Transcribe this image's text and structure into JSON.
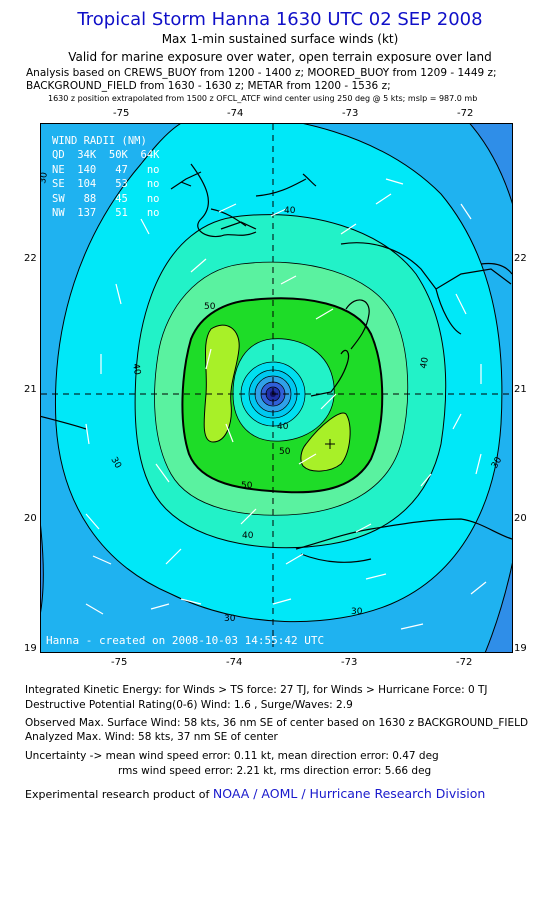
{
  "header": {
    "title": "Tropical Storm Hanna 1630 UTC 02 SEP 2008",
    "subtitle1": "Max 1-min sustained surface winds (kt)",
    "subtitle2": "Valid for marine exposure over water, open terrain exposure over land",
    "analysis1": "Analysis based on  CREWS_BUOY from 1200 - 1400 z;  MOORED_BUOY from 1209 - 1449 z;",
    "analysis2": "BACKGROUND_FIELD from 1630 - 1630 z;  METAR from 1200 - 1536 z;",
    "analysis3": "1630 z position extrapolated from 1500 z OFCL_ATCF wind center using 250 deg @ 5 kts; mslp = 987.0 mb"
  },
  "axes": {
    "lon_ticks": [
      "-75",
      "-74",
      "-73",
      "-72"
    ],
    "lat_ticks": [
      "22",
      "21",
      "20",
      "19"
    ]
  },
  "wind_radii": {
    "title": "WIND RADII (NM)",
    "header": "QD  34K  50K  64K",
    "rows": [
      "NE  140   47   no",
      "SE  104   53   no",
      "SW   88   45   no",
      "NW  137   51   no"
    ]
  },
  "contour_labels": [
    "30",
    "30",
    "30",
    "30",
    "30",
    "40",
    "40",
    "40",
    "40",
    "40",
    "50",
    "50",
    "50"
  ],
  "credit": "Hanna - created on 2008-10-03 14:55:42 UTC",
  "footer": {
    "ike": "Integrated Kinetic Energy:  for Winds > TS force: 27 TJ,  for Winds > Hurricane Force: 0 TJ",
    "dpr": "Destructive Potential Rating(0-6)   Wind: 1.6 , Surge/Waves: 2.9",
    "obs_max": "Observed Max. Surface Wind: 58 kts, 36 nm SE of center based on 1630 z BACKGROUND_FIELD",
    "ana_max": "Analyzed Max. Wind: 58 kts, 37 nm SE of center",
    "unc1": "Uncertainty -> mean wind speed error: 0.11 kt,   mean direction error: 0.47 deg",
    "unc2": "rms wind speed error: 2.21 kt,   rms direction error: 5.66 deg",
    "product_prefix": "Experimental research product of ",
    "product_link": "NOAA / AOML / Hurricane Research Division"
  },
  "colors": {
    "title": "#1010c8",
    "outer_blue": "#2f8ee8",
    "band_30": "#1fb2f0",
    "band_cyan": "#00e8f8",
    "band_40": "#22f2c8",
    "band_45": "#5af2a0",
    "band_50": "#1edc28",
    "core": "#a8f028",
    "center": "#1a1a80",
    "link": "#1a1acc"
  }
}
